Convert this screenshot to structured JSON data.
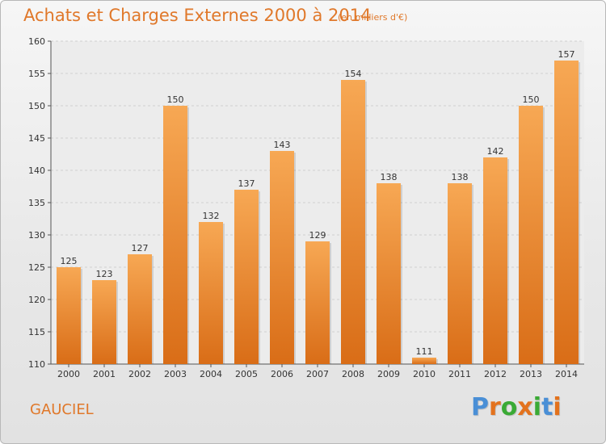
{
  "header": {
    "title": "Achats et Charges Externes 2000 à 2014",
    "subtitle": "(en milliers d'€)"
  },
  "footer": {
    "town": "GAUCIEL",
    "logo": [
      "P",
      "r",
      "o",
      "x",
      "i",
      "t",
      "i"
    ]
  },
  "colors": {
    "accent": "#e0782a",
    "bar_top": "#f7a854",
    "bar_bottom": "#d96d17",
    "logo": [
      "#4a8fd6",
      "#e3721d",
      "#3aaa35",
      "#e3721d",
      "#3aaa35",
      "#4a8fd6",
      "#e3721d"
    ]
  },
  "chart_data": {
    "type": "bar",
    "title": "Achats et Charges Externes 2000 à 2014",
    "subtitle": "(en milliers d'€)",
    "categories": [
      "2000",
      "2001",
      "2002",
      "2003",
      "2004",
      "2005",
      "2006",
      "2007",
      "2008",
      "2009",
      "2010",
      "2011",
      "2012",
      "2013",
      "2014"
    ],
    "values": [
      125,
      123,
      127,
      150,
      132,
      137,
      143,
      129,
      154,
      138,
      111,
      138,
      142,
      150,
      157
    ],
    "ylim": [
      110,
      160
    ],
    "yticks": [
      110,
      115,
      120,
      125,
      130,
      135,
      140,
      145,
      150,
      155,
      160
    ],
    "grid": true
  }
}
